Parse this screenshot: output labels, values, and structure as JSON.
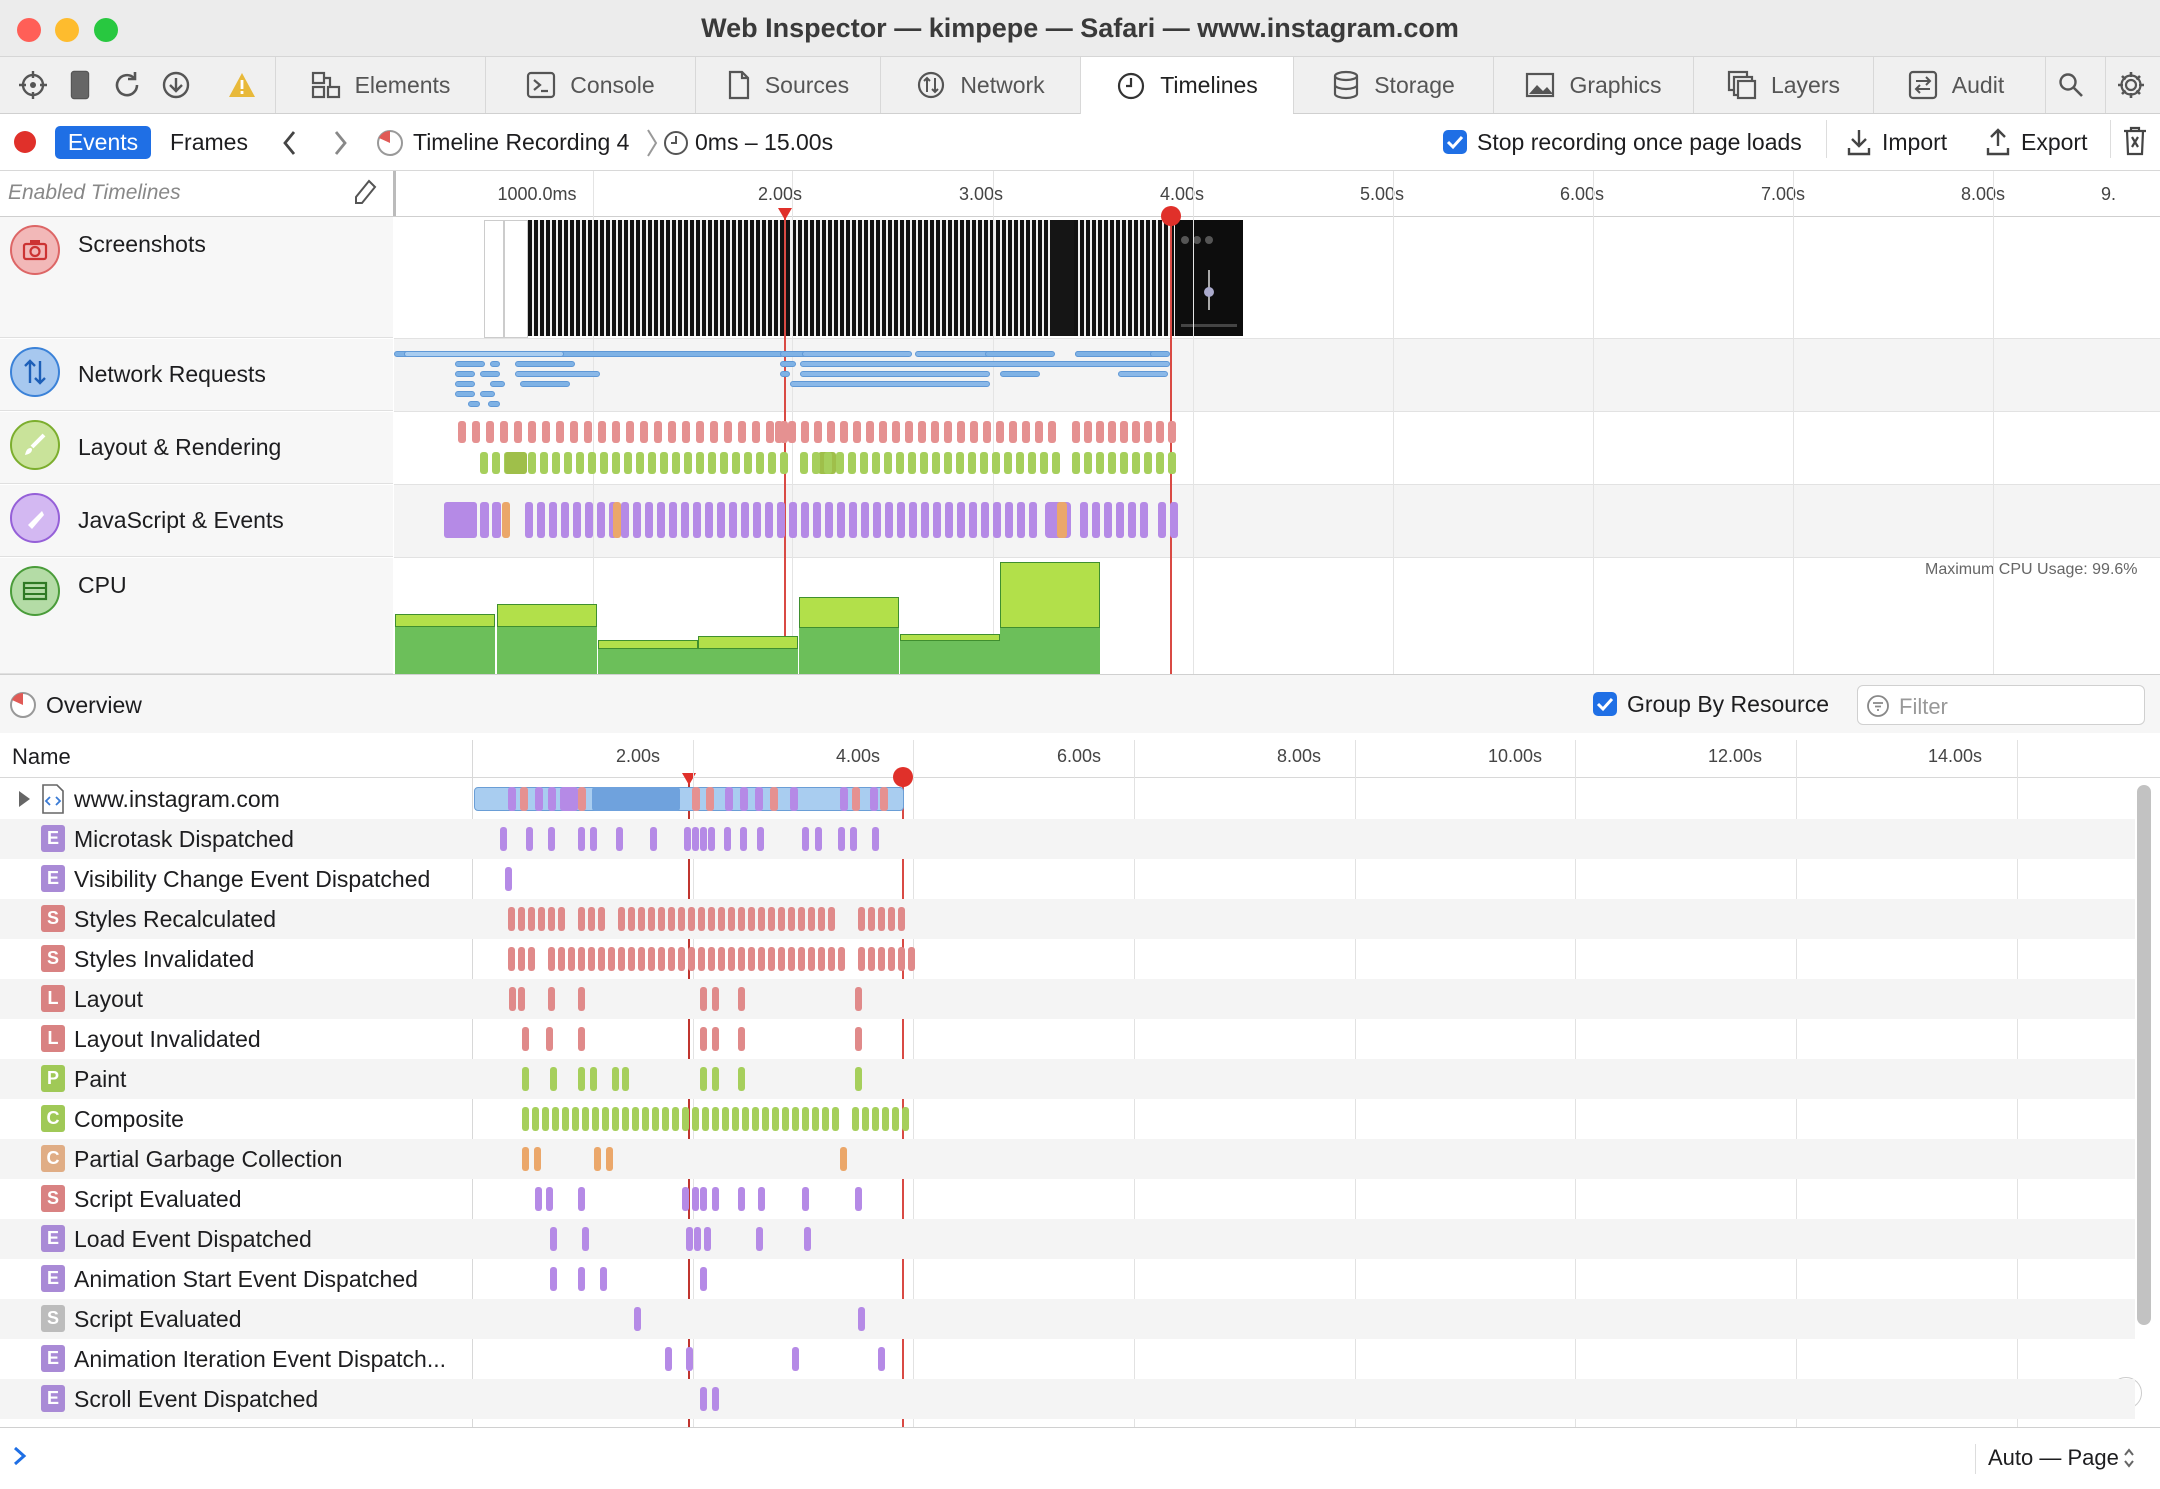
{
  "window": {
    "title": "Web Inspector — kimpepe — Safari — www.instagram.com"
  },
  "colors": {
    "red": "#e0443e",
    "blue": "#1f6fe5",
    "layout": "#e07b7b",
    "paint": "#9fcf4a",
    "script": "#b58ae6",
    "gc": "#eba76a",
    "net": "#7fb2e5",
    "cpu_dark": "#6cbf5a",
    "cpu_light": "#b2e04a"
  },
  "tabs": [
    {
      "label": "Elements",
      "icon": "elements-icon"
    },
    {
      "label": "Console",
      "icon": "console-icon"
    },
    {
      "label": "Sources",
      "icon": "sources-icon"
    },
    {
      "label": "Network",
      "icon": "network-icon"
    },
    {
      "label": "Timelines",
      "icon": "timelines-icon",
      "selected": true
    },
    {
      "label": "Storage",
      "icon": "storage-icon"
    },
    {
      "label": "Graphics",
      "icon": "graphics-icon"
    },
    {
      "label": "Layers",
      "icon": "layers-icon"
    },
    {
      "label": "Audit",
      "icon": "audit-icon"
    }
  ],
  "toolbar": {
    "events_label": "Events",
    "frames_label": "Frames",
    "recording_name": "Timeline Recording 4",
    "range": "0ms – 15.00s",
    "stop_recording_label": "Stop recording once page loads",
    "stop_recording_checked": true,
    "import_label": "Import",
    "export_label": "Export"
  },
  "ruler": {
    "enabled_timelines_label": "Enabled Timelines",
    "ticks": [
      "1000.0ms",
      "2.00s",
      "3.00s",
      "4.00s",
      "5.00s",
      "6.00s",
      "7.00s",
      "8.00s",
      "9."
    ]
  },
  "timelines": [
    {
      "label": "Screenshots",
      "icon": "camera-icon"
    },
    {
      "label": "Network Requests",
      "icon": "network-requests-icon"
    },
    {
      "label": "Layout & Rendering",
      "icon": "paintbrush-icon"
    },
    {
      "label": "JavaScript & Events",
      "icon": "script-icon"
    },
    {
      "label": "CPU",
      "icon": "cpu-icon"
    }
  ],
  "cpu": {
    "max_label": "Maximum CPU Usage: 99.6%"
  },
  "overview": {
    "label": "Overview",
    "group_by_resource_label": "Group By Resource",
    "group_by_resource_checked": true,
    "filter_placeholder": "Filter"
  },
  "table": {
    "name_header": "Name",
    "ticks": [
      "2.00s",
      "4.00s",
      "6.00s",
      "8.00s",
      "10.00s",
      "12.00s",
      "14.00s"
    ],
    "rows": [
      {
        "name": "www.instagram.com",
        "badge": ""
      },
      {
        "name": "Microtask Dispatched",
        "badge": "E"
      },
      {
        "name": "Visibility Change Event Dispatched",
        "badge": "E"
      },
      {
        "name": "Styles Recalculated",
        "badge": "S"
      },
      {
        "name": "Styles Invalidated",
        "badge": "S"
      },
      {
        "name": "Layout",
        "badge": "L"
      },
      {
        "name": "Layout Invalidated",
        "badge": "L"
      },
      {
        "name": "Paint",
        "badge": "P"
      },
      {
        "name": "Composite",
        "badge": "C"
      },
      {
        "name": "Partial Garbage Collection",
        "badge": "C"
      },
      {
        "name": "Script Evaluated",
        "badge": "S"
      },
      {
        "name": "Load Event Dispatched",
        "badge": "E"
      },
      {
        "name": "Animation Start Event Dispatched",
        "badge": "E"
      },
      {
        "name": "Script Evaluated",
        "badge": "S"
      },
      {
        "name": "Animation Iteration Event Dispatch...",
        "badge": "E"
      },
      {
        "name": "Scroll Event Dispatched",
        "badge": "E"
      }
    ]
  },
  "footer": {
    "mode": "Auto — Page"
  }
}
